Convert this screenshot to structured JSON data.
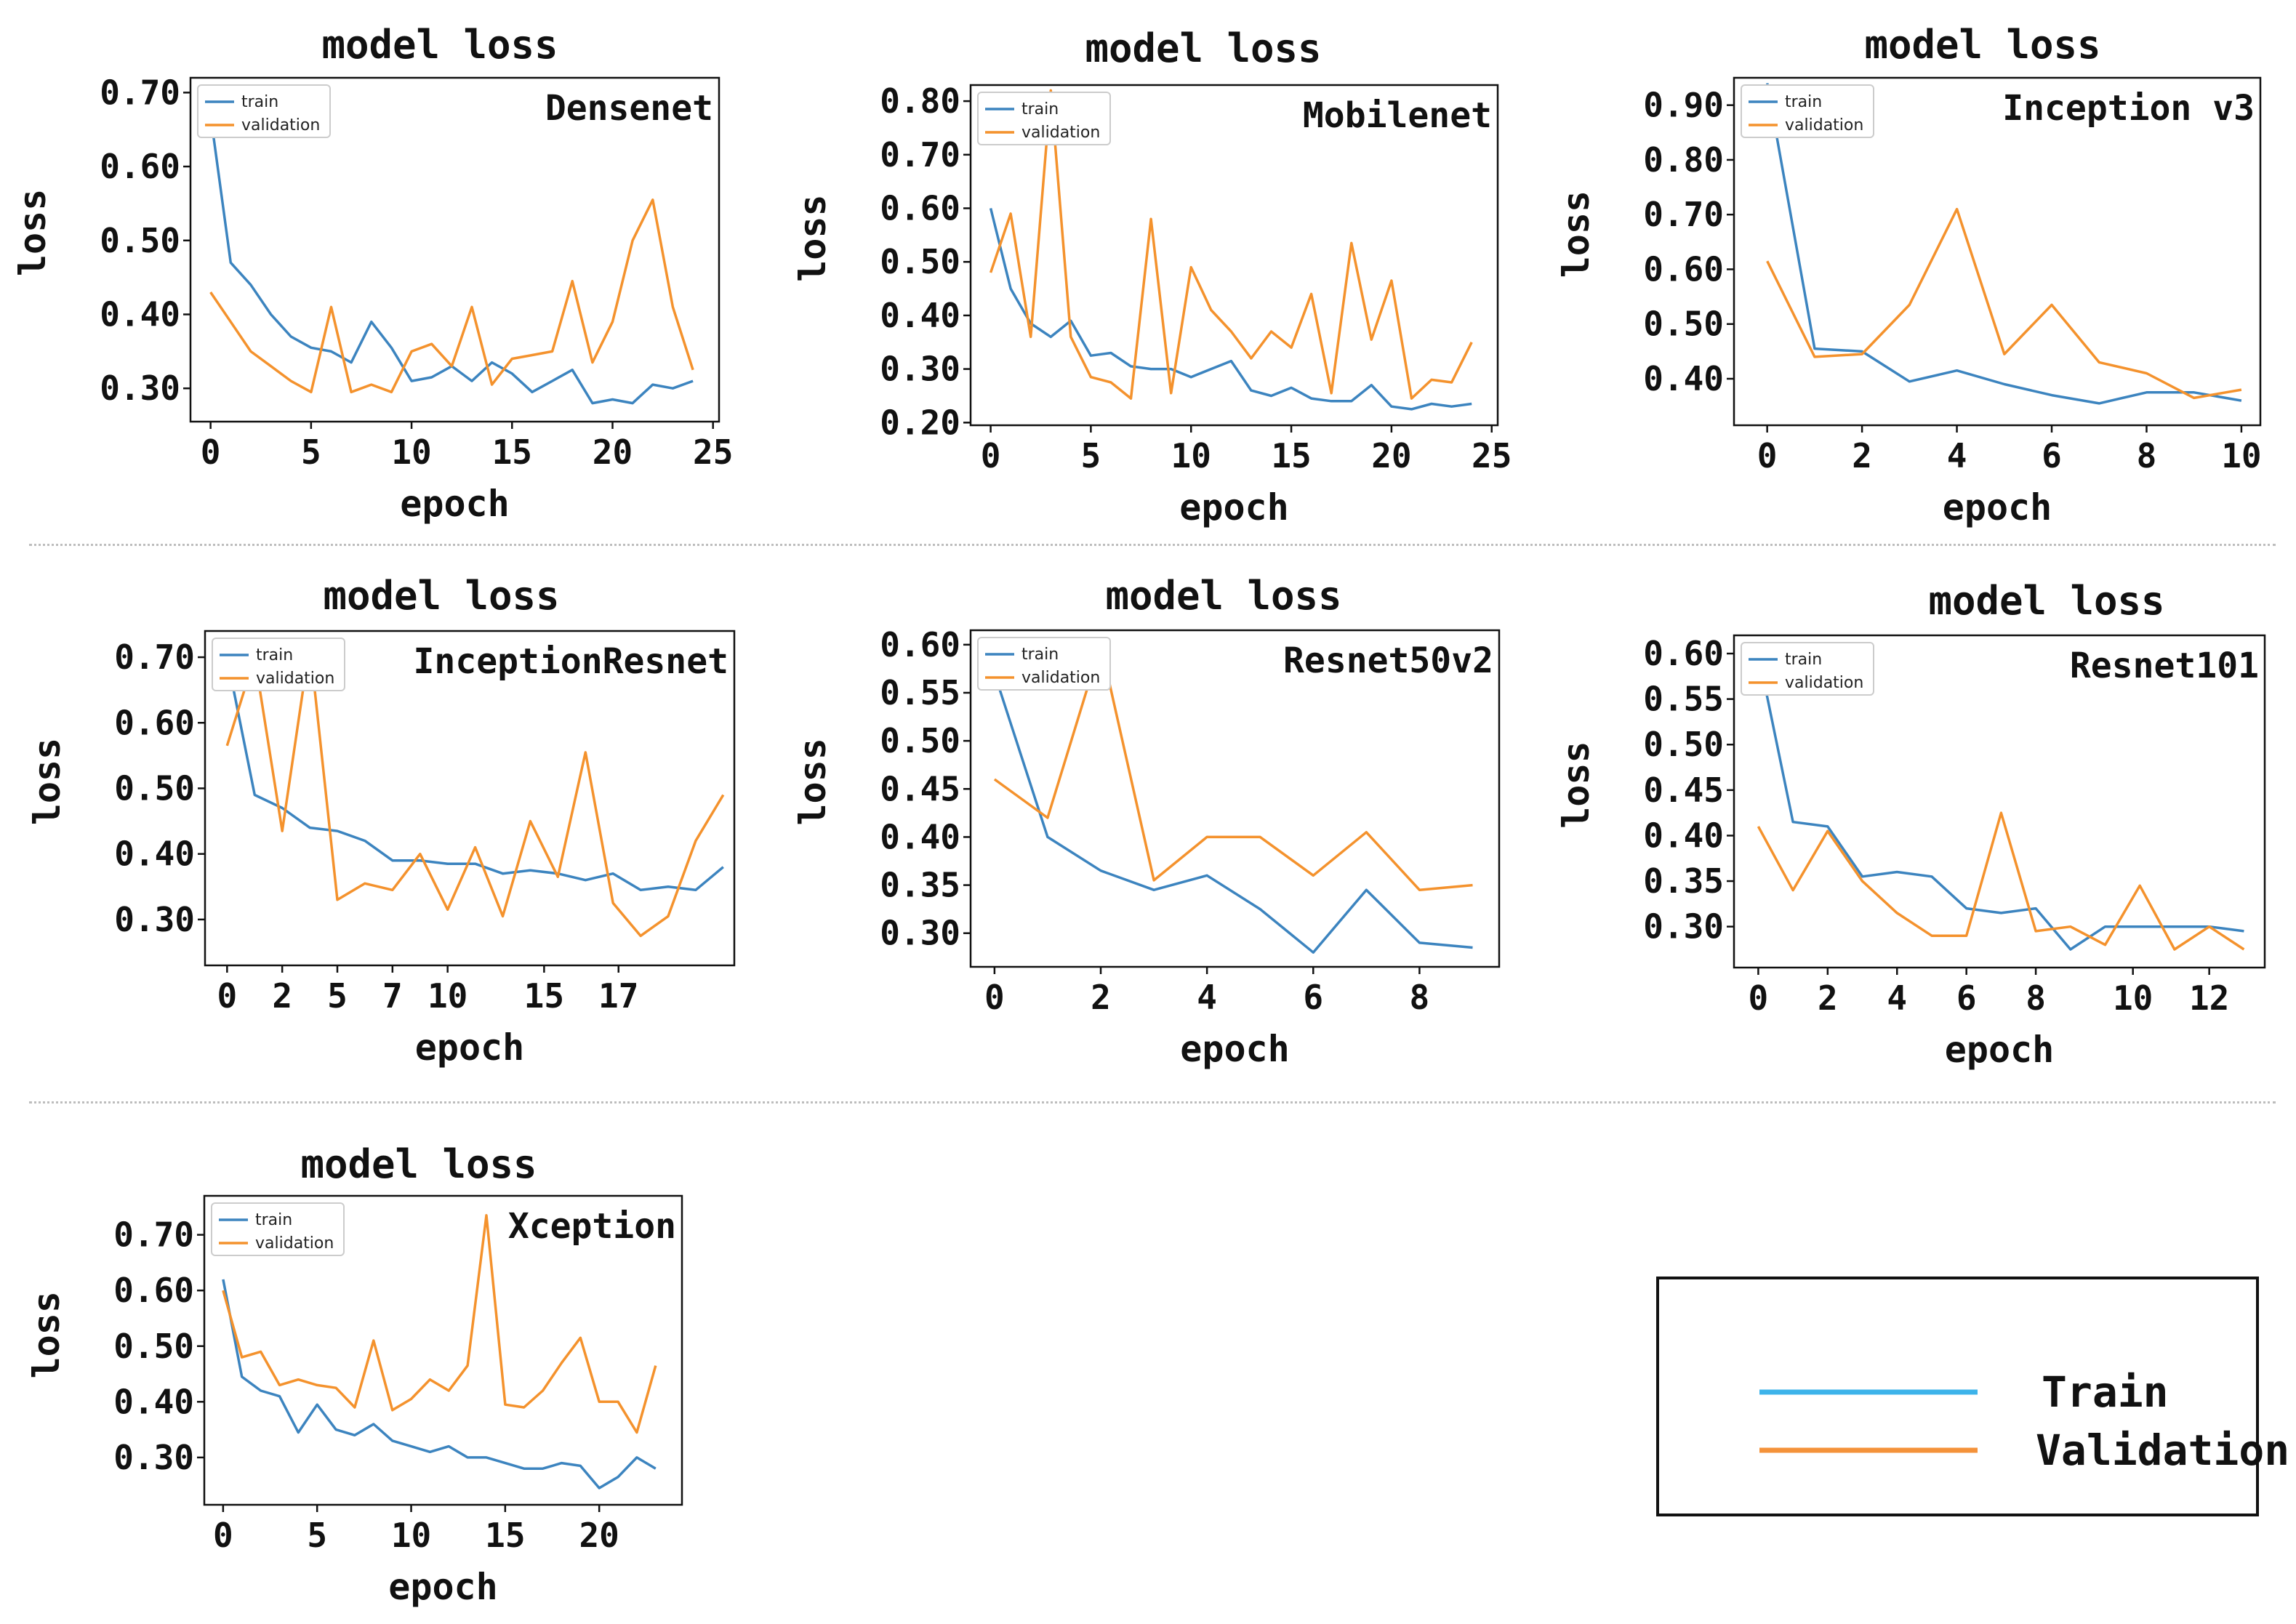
{
  "chart_data": [
    {
      "type": "line",
      "title": "model loss",
      "model": "Densenet",
      "xlabel": "epoch",
      "ylabel": "loss",
      "xlim": [
        -1,
        25.3
      ],
      "ylim": [
        0.255,
        0.72
      ],
      "xticks": [
        0,
        5,
        10,
        15,
        20,
        25
      ],
      "yticks": [
        0.3,
        0.4,
        0.5,
        0.6,
        0.7
      ],
      "ytick_labels": [
        "0.30",
        "0.40",
        "0.50",
        "0.60",
        "0.70"
      ],
      "legend": [
        "train",
        "validation"
      ],
      "series": [
        {
          "name": "train",
          "x": [
            0,
            1,
            2,
            3,
            4,
            5,
            6,
            7,
            8,
            9,
            10,
            11,
            12,
            13,
            14,
            15,
            16,
            17,
            18,
            19,
            20,
            21,
            22,
            23,
            24
          ],
          "values": [
            0.67,
            0.47,
            0.44,
            0.4,
            0.37,
            0.355,
            0.35,
            0.335,
            0.39,
            0.355,
            0.31,
            0.315,
            0.33,
            0.31,
            0.335,
            0.32,
            0.295,
            0.31,
            0.325,
            0.28,
            0.285,
            0.28,
            0.305,
            0.3,
            0.31
          ]
        },
        {
          "name": "validation",
          "x": [
            0,
            1,
            2,
            3,
            4,
            5,
            6,
            7,
            8,
            9,
            10,
            11,
            12,
            13,
            14,
            15,
            16,
            17,
            18,
            19,
            20,
            21,
            22,
            23,
            24
          ],
          "values": [
            0.43,
            0.39,
            0.35,
            0.33,
            0.31,
            0.295,
            0.41,
            0.295,
            0.305,
            0.295,
            0.35,
            0.36,
            0.33,
            0.41,
            0.305,
            0.34,
            0.345,
            0.35,
            0.445,
            0.335,
            0.39,
            0.5,
            0.555,
            0.41,
            0.325
          ]
        }
      ]
    },
    {
      "type": "line",
      "title": "model loss",
      "model": "Mobilenet",
      "xlabel": "epoch",
      "ylabel": "loss",
      "xlim": [
        -1,
        25.3
      ],
      "ylim": [
        0.195,
        0.83
      ],
      "xticks": [
        0,
        5,
        10,
        15,
        20,
        25
      ],
      "yticks": [
        0.2,
        0.3,
        0.4,
        0.5,
        0.6,
        0.7,
        0.8
      ],
      "ytick_labels": [
        "0.20",
        "0.30",
        "0.40",
        "0.50",
        "0.60",
        "0.70",
        "0.80"
      ],
      "legend": [
        "train",
        "validation"
      ],
      "series": [
        {
          "name": "train",
          "x": [
            0,
            1,
            2,
            3,
            4,
            5,
            6,
            7,
            8,
            9,
            10,
            11,
            12,
            13,
            14,
            15,
            16,
            17,
            18,
            19,
            20,
            21,
            22,
            23,
            24
          ],
          "values": [
            0.6,
            0.45,
            0.385,
            0.36,
            0.39,
            0.325,
            0.33,
            0.305,
            0.3,
            0.3,
            0.285,
            0.3,
            0.315,
            0.26,
            0.25,
            0.265,
            0.245,
            0.24,
            0.24,
            0.27,
            0.23,
            0.225,
            0.235,
            0.23,
            0.235
          ]
        },
        {
          "name": "validation",
          "x": [
            0,
            1,
            2,
            3,
            4,
            5,
            6,
            7,
            8,
            9,
            10,
            11,
            12,
            13,
            14,
            15,
            16,
            17,
            18,
            19,
            20,
            21,
            22,
            23,
            24
          ],
          "values": [
            0.48,
            0.59,
            0.36,
            0.82,
            0.36,
            0.285,
            0.275,
            0.245,
            0.58,
            0.255,
            0.49,
            0.41,
            0.37,
            0.32,
            0.37,
            0.34,
            0.44,
            0.255,
            0.535,
            0.355,
            0.465,
            0.245,
            0.28,
            0.275,
            0.35
          ]
        }
      ]
    },
    {
      "type": "line",
      "title": "model loss",
      "model": "Inception v3",
      "xlabel": "epoch",
      "ylabel": "loss",
      "xlim": [
        -0.7,
        10.4
      ],
      "ylim": [
        0.315,
        0.95
      ],
      "xticks": [
        0,
        2,
        4,
        6,
        8,
        10
      ],
      "yticks": [
        0.4,
        0.5,
        0.6,
        0.7,
        0.8,
        0.9
      ],
      "ytick_labels": [
        "0.40",
        "0.50",
        "0.60",
        "0.70",
        "0.80",
        "0.90"
      ],
      "legend": [
        "train",
        "validation"
      ],
      "series": [
        {
          "name": "train",
          "x": [
            0,
            1,
            2,
            3,
            4,
            5,
            6,
            7,
            8,
            9,
            10
          ],
          "values": [
            0.94,
            0.455,
            0.45,
            0.395,
            0.415,
            0.39,
            0.37,
            0.355,
            0.375,
            0.375,
            0.36
          ]
        },
        {
          "name": "validation",
          "x": [
            0,
            1,
            2,
            3,
            4,
            5,
            6,
            7,
            8,
            9,
            10
          ],
          "values": [
            0.615,
            0.44,
            0.445,
            0.535,
            0.71,
            0.445,
            0.535,
            0.43,
            0.41,
            0.365,
            0.38
          ]
        }
      ]
    },
    {
      "type": "line",
      "title": "model loss",
      "model": "InceptionResnet",
      "xlabel": "epoch",
      "ylabel": "loss",
      "xlim": [
        -0.8,
        18.4
      ],
      "ylim": [
        0.23,
        0.74
      ],
      "xticks": [
        0,
        2,
        5,
        7,
        10,
        15,
        17
      ],
      "xtick_positions": [
        0,
        2,
        4,
        6,
        8,
        11.5,
        14.2
      ],
      "yticks": [
        0.3,
        0.4,
        0.5,
        0.6,
        0.7
      ],
      "ytick_labels": [
        "0.30",
        "0.40",
        "0.50",
        "0.60",
        "0.70"
      ],
      "legend": [
        "train",
        "validation"
      ],
      "series": [
        {
          "name": "train",
          "x": [
            0,
            1,
            2,
            3,
            4,
            5,
            6,
            7,
            8,
            9,
            10,
            11,
            12,
            13,
            14,
            15,
            16,
            17,
            18
          ],
          "values": [
            0.7,
            0.49,
            0.47,
            0.44,
            0.435,
            0.42,
            0.39,
            0.39,
            0.385,
            0.385,
            0.37,
            0.375,
            0.37,
            0.36,
            0.37,
            0.345,
            0.35,
            0.345,
            0.38
          ]
        },
        {
          "name": "validation",
          "x": [
            0,
            1,
            2,
            3,
            4,
            5,
            6,
            7,
            8,
            9,
            10,
            11,
            12,
            13,
            14,
            15,
            16,
            17,
            18
          ],
          "values": [
            0.565,
            0.7,
            0.435,
            0.72,
            0.33,
            0.355,
            0.345,
            0.4,
            0.315,
            0.41,
            0.305,
            0.45,
            0.365,
            0.555,
            0.325,
            0.275,
            0.305,
            0.42,
            0.49
          ]
        }
      ]
    },
    {
      "type": "line",
      "title": "model loss",
      "model": "Resnet50v2",
      "xlabel": "epoch",
      "ylabel": "loss",
      "xlim": [
        -0.45,
        9.5
      ],
      "ylim": [
        0.265,
        0.615
      ],
      "xticks": [
        0,
        2,
        4,
        6,
        8
      ],
      "yticks": [
        0.3,
        0.35,
        0.4,
        0.45,
        0.5,
        0.55,
        0.6
      ],
      "ytick_labels": [
        "0.30",
        "0.35",
        "0.40",
        "0.45",
        "0.50",
        "0.55",
        "0.60"
      ],
      "legend": [
        "train",
        "validation"
      ],
      "series": [
        {
          "name": "train",
          "x": [
            0,
            1,
            2,
            3,
            4,
            5,
            6,
            7,
            8,
            9
          ],
          "values": [
            0.57,
            0.4,
            0.365,
            0.345,
            0.36,
            0.325,
            0.28,
            0.345,
            0.29,
            0.285
          ]
        },
        {
          "name": "validation",
          "x": [
            0,
            1,
            2,
            3,
            4,
            5,
            6,
            7,
            8,
            9
          ],
          "values": [
            0.46,
            0.42,
            0.6,
            0.355,
            0.4,
            0.4,
            0.36,
            0.405,
            0.345,
            0.35
          ]
        }
      ]
    },
    {
      "type": "line",
      "title": "model loss",
      "model": "Resnet101",
      "xlabel": "epoch",
      "ylabel": "loss",
      "xlim": [
        -0.7,
        14.6
      ],
      "ylim": [
        0.255,
        0.62
      ],
      "xticks": [
        0,
        2,
        4,
        6,
        8,
        10,
        12
      ],
      "xtick_positions": [
        0,
        2,
        4,
        6,
        8,
        10.8,
        13
      ],
      "yticks": [
        0.3,
        0.35,
        0.4,
        0.45,
        0.5,
        0.55,
        0.6
      ],
      "ytick_labels": [
        "0.30",
        "0.35",
        "0.40",
        "0.45",
        "0.50",
        "0.55",
        "0.60"
      ],
      "legend": [
        "train",
        "validation"
      ],
      "series": [
        {
          "name": "train",
          "x": [
            0,
            1,
            2,
            3,
            4,
            5,
            6,
            7,
            8,
            9,
            10,
            11,
            12,
            13,
            14
          ],
          "values": [
            0.6,
            0.415,
            0.41,
            0.355,
            0.36,
            0.355,
            0.32,
            0.315,
            0.32,
            0.275,
            0.3,
            0.3,
            0.3,
            0.3,
            0.295
          ]
        },
        {
          "name": "validation",
          "x": [
            0,
            1,
            2,
            3,
            4,
            5,
            6,
            7,
            8,
            9,
            10,
            11,
            12,
            13,
            14
          ],
          "values": [
            0.41,
            0.34,
            0.405,
            0.35,
            0.315,
            0.29,
            0.29,
            0.425,
            0.295,
            0.3,
            0.28,
            0.345,
            0.275,
            0.3,
            0.275
          ]
        }
      ]
    },
    {
      "type": "line",
      "title": "model loss",
      "model": "Xception",
      "xlabel": "epoch",
      "ylabel": "loss",
      "xlim": [
        -1,
        24.4
      ],
      "ylim": [
        0.215,
        0.77
      ],
      "xticks": [
        0,
        5,
        10,
        15,
        20
      ],
      "yticks": [
        0.3,
        0.4,
        0.5,
        0.6,
        0.7
      ],
      "ytick_labels": [
        "0.30",
        "0.40",
        "0.50",
        "0.60",
        "0.70"
      ],
      "legend": [
        "train",
        "validation"
      ],
      "series": [
        {
          "name": "train",
          "x": [
            0,
            1,
            2,
            3,
            4,
            5,
            6,
            7,
            8,
            9,
            10,
            11,
            12,
            13,
            14,
            15,
            16,
            17,
            18,
            19,
            20,
            21,
            22,
            23
          ],
          "values": [
            0.62,
            0.445,
            0.42,
            0.41,
            0.345,
            0.395,
            0.35,
            0.34,
            0.36,
            0.33,
            0.32,
            0.31,
            0.32,
            0.3,
            0.3,
            0.29,
            0.28,
            0.28,
            0.29,
            0.285,
            0.245,
            0.265,
            0.3,
            0.28
          ]
        },
        {
          "name": "validation",
          "x": [
            0,
            1,
            2,
            3,
            4,
            5,
            6,
            7,
            8,
            9,
            10,
            11,
            12,
            13,
            14,
            15,
            16,
            17,
            18,
            19,
            20,
            21,
            22,
            23
          ],
          "values": [
            0.6,
            0.48,
            0.49,
            0.43,
            0.44,
            0.43,
            0.425,
            0.39,
            0.51,
            0.385,
            0.405,
            0.44,
            0.42,
            0.465,
            0.735,
            0.395,
            0.39,
            0.42,
            0.47,
            0.515,
            0.4,
            0.4,
            0.345,
            0.465
          ]
        }
      ]
    }
  ],
  "key": {
    "items": [
      {
        "label": "Train",
        "color": "#3db3ea"
      },
      {
        "label": "Validation",
        "color": "#f4923a"
      }
    ]
  },
  "colors": {
    "train": "#3c84bf",
    "validation": "#f4922d"
  }
}
